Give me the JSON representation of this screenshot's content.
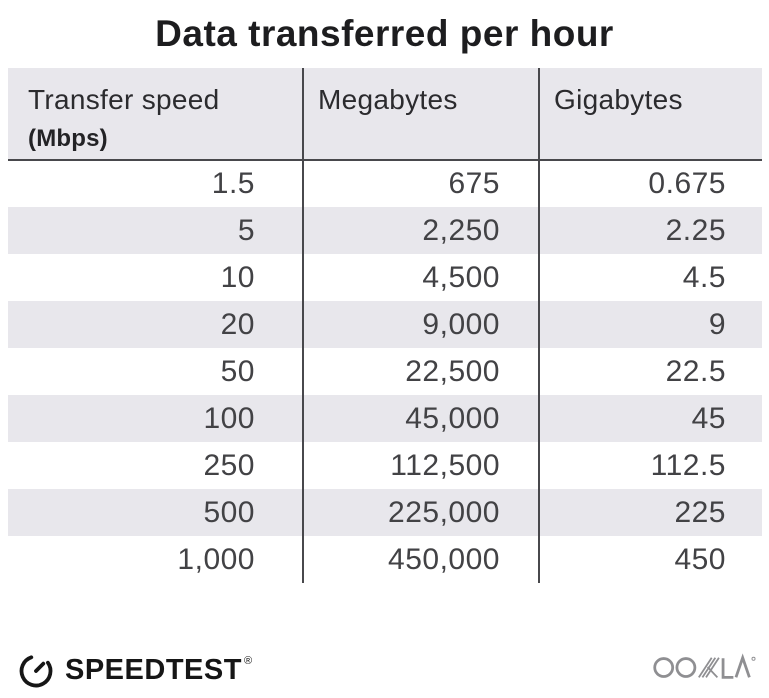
{
  "title": "Data transferred per hour",
  "table": {
    "header": {
      "col1_label": "Transfer speed",
      "col1_sublabel": "(Mbps)",
      "col2_label": "Megabytes",
      "col3_label": "Gigabytes"
    },
    "rows": [
      [
        "1.5",
        "675",
        "0.675"
      ],
      [
        "5",
        "2,250",
        "2.25"
      ],
      [
        "10",
        "4,500",
        "4.5"
      ],
      [
        "20",
        "9,000",
        "9"
      ],
      [
        "50",
        "22,500",
        "22.5"
      ],
      [
        "100",
        "45,000",
        "45"
      ],
      [
        "250",
        "112,500",
        "112.5"
      ],
      [
        "500",
        "225,000",
        "225"
      ],
      [
        "1,000",
        "450,000",
        "450"
      ]
    ]
  },
  "chart_data": {
    "type": "table",
    "title": "Data transferred per hour",
    "columns": [
      "Transfer speed (Mbps)",
      "Megabytes",
      "Gigabytes"
    ],
    "rows": [
      [
        1.5,
        675,
        0.675
      ],
      [
        5,
        2250,
        2.25
      ],
      [
        10,
        4500,
        4.5
      ],
      [
        20,
        9000,
        9
      ],
      [
        50,
        22500,
        22.5
      ],
      [
        100,
        45000,
        45
      ],
      [
        250,
        112500,
        112.5
      ],
      [
        500,
        225000,
        225
      ],
      [
        1000,
        450000,
        450
      ]
    ],
    "layout": {
      "striped_rows": true,
      "stripe_pattern": "even rows shaded",
      "column_dividers": true,
      "numbers_right_aligned": true
    }
  },
  "footer": {
    "speedtest_label": "SPEEDTEST",
    "speedtest_trademark": "®",
    "ookla_label": "OOKLA",
    "ookla_trademark": "®"
  },
  "colors": {
    "stripe": "#e8e7ec",
    "header_bg": "#e8e7ec",
    "divider": "#48484c",
    "title_text": "#1d1d1f",
    "cell_text": "#424245",
    "speedtest_black": "#161616",
    "ookla_gray": "#8f8f92"
  }
}
